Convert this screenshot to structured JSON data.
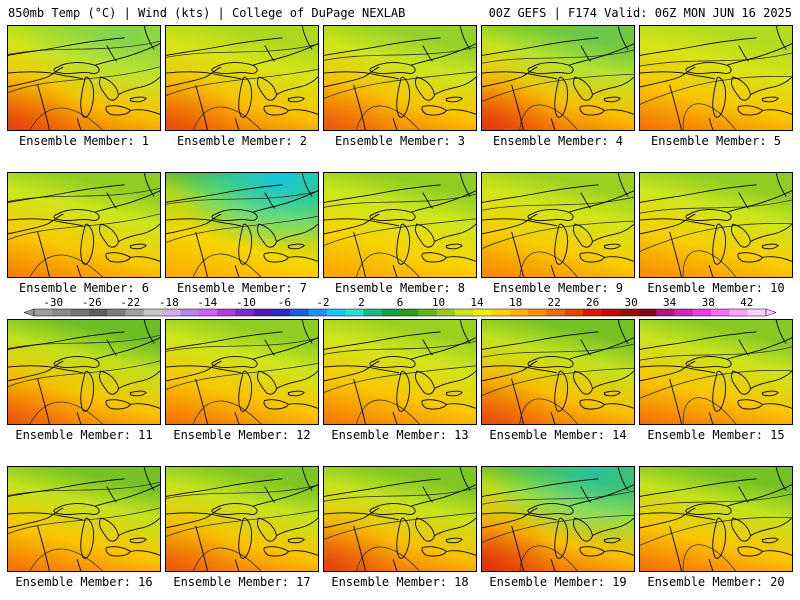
{
  "header": {
    "left": "850mb Temp (°C) | Wind (kts) | College of DuPage NEXLAB",
    "right": "00Z GEFS | F174 Valid: 06Z MON JUN 16 2025"
  },
  "caption_prefix": "Ensemble Member: ",
  "members": [
    {
      "id": "1",
      "warm": 0.85,
      "cool": 0.15,
      "cold": 0.25
    },
    {
      "id": "2",
      "warm": 0.8,
      "cool": 0.1,
      "cold": 0.0
    },
    {
      "id": "3",
      "warm": 0.75,
      "cool": 0.25,
      "cold": 0.05
    },
    {
      "id": "4",
      "warm": 0.9,
      "cool": 0.45,
      "cold": 0.2
    },
    {
      "id": "5",
      "warm": 0.7,
      "cool": 0.05,
      "cold": 0.0
    },
    {
      "id": "6",
      "warm": 0.6,
      "cool": 0.35,
      "cold": 0.0
    },
    {
      "id": "7",
      "warm": 0.3,
      "cool": 0.9,
      "cold": 0.9
    },
    {
      "id": "8",
      "warm": 0.35,
      "cool": 0.35,
      "cold": 0.0
    },
    {
      "id": "9",
      "warm": 0.55,
      "cool": 0.25,
      "cold": 0.0
    },
    {
      "id": "10",
      "warm": 0.5,
      "cool": 0.35,
      "cold": 0.0
    },
    {
      "id": "11",
      "warm": 0.75,
      "cool": 0.55,
      "cold": 0.0
    },
    {
      "id": "12",
      "warm": 0.7,
      "cool": 0.35,
      "cold": 0.0
    },
    {
      "id": "13",
      "warm": 0.65,
      "cool": 0.25,
      "cold": 0.0
    },
    {
      "id": "14",
      "warm": 0.8,
      "cool": 0.5,
      "cold": 0.0
    },
    {
      "id": "15",
      "warm": 0.7,
      "cool": 0.4,
      "cold": 0.0
    },
    {
      "id": "16",
      "warm": 0.7,
      "cool": 0.5,
      "cold": 0.0
    },
    {
      "id": "17",
      "warm": 0.75,
      "cool": 0.45,
      "cold": 0.0
    },
    {
      "id": "18",
      "warm": 0.85,
      "cool": 0.45,
      "cold": 0.0
    },
    {
      "id": "19",
      "warm": 0.95,
      "cool": 0.7,
      "cold": 0.6
    },
    {
      "id": "20",
      "warm": 0.7,
      "cool": 0.5,
      "cold": 0.0
    }
  ],
  "colorbar": {
    "labels": [
      "-30",
      "-26",
      "-22",
      "-18",
      "-14",
      "-10",
      "-6",
      "-2",
      "2",
      "6",
      "10",
      "14",
      "18",
      "22",
      "26",
      "30",
      "34",
      "38",
      "42"
    ],
    "colors": [
      "#9e9e9e",
      "#8a8a8a",
      "#747474",
      "#5e5e5e",
      "#7c7c7c",
      "#a0a0a0",
      "#c8c8c8",
      "#d2aee6",
      "#b884e8",
      "#d062f0",
      "#a642d6",
      "#7c2ad8",
      "#5018c0",
      "#2a2cc8",
      "#1e5ae6",
      "#1a96ee",
      "#12c8ee",
      "#2ae0d2",
      "#14be82",
      "#0ea444",
      "#2c9a1a",
      "#62b222",
      "#98cc1e",
      "#cce41c",
      "#f0f00a",
      "#f8d600",
      "#fab400",
      "#f89200",
      "#f06e00",
      "#e84400",
      "#dc1a0a",
      "#c80a0a",
      "#9c0a0a",
      "#800a14",
      "#b8147e",
      "#d626b6",
      "#e840e0",
      "#f070f0",
      "#f8a4f6",
      "#fcd0fc"
    ]
  }
}
